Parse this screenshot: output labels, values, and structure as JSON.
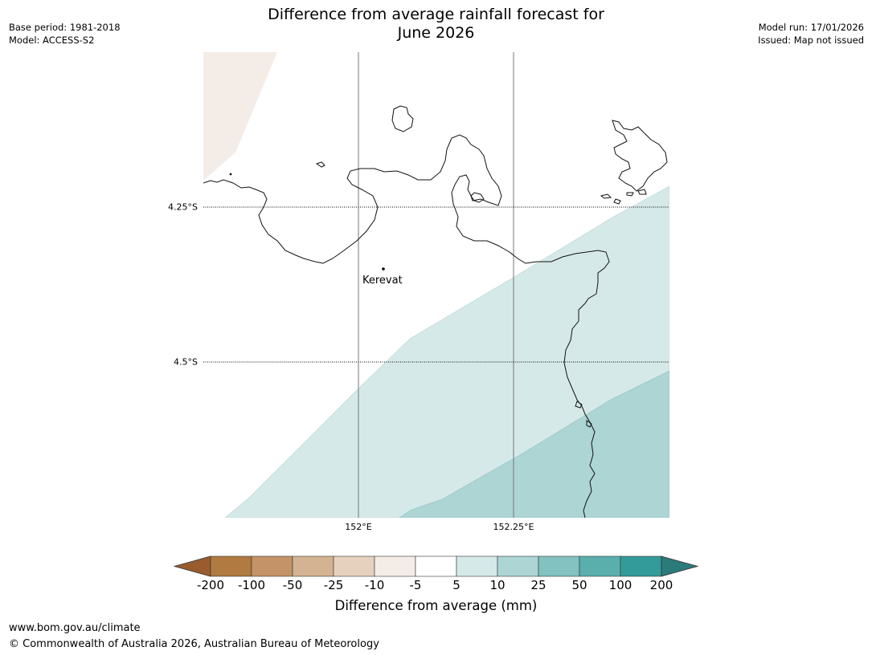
{
  "header": {
    "title_line1": "Difference from average rainfall forecast for",
    "title_line2": "June 2026",
    "base_period": "Base period: 1981-2018",
    "model": "Model: ACCESS-S2",
    "model_run": "Model run: 17/01/2026",
    "issued": "Issued: Map not issued"
  },
  "map": {
    "latitudes": [
      "4.25°S",
      "4.5°S"
    ],
    "longitudes": [
      "152°E",
      "152.25°E"
    ],
    "place": {
      "name": "Kerevat"
    },
    "colors": {
      "land_outline": "#111111",
      "dry_band": "#f4ede7",
      "light_wet": "#d5e9e8",
      "mid_wet": "#acd5d4"
    }
  },
  "colorbar": {
    "label": "Difference from average (mm)",
    "ticks": [
      "-200",
      "-100",
      "-50",
      "-25",
      "-10",
      "-5",
      "5",
      "10",
      "25",
      "50",
      "100",
      "200"
    ],
    "colors": [
      "#995c2e",
      "#b07a40",
      "#c49468",
      "#d4b392",
      "#e6d1bf",
      "#f4ede7",
      "#ffffff",
      "#d5e9e8",
      "#acd5d4",
      "#82c2c0",
      "#5aafad",
      "#339b99",
      "#2a7b7a"
    ]
  },
  "footer": {
    "url": "www.bom.gov.au/climate",
    "copyright": "© Commonwealth of Australia 2026, Australian Bureau of Meteorology"
  }
}
